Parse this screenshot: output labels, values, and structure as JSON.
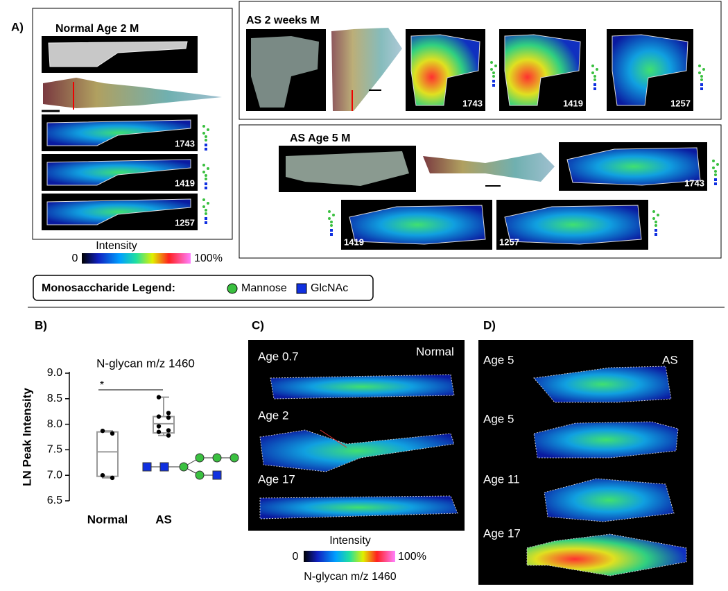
{
  "panel_a": {
    "label": "A)",
    "normal": {
      "title": "Normal Age 2 M",
      "mz": [
        "1743",
        "1419",
        "1257"
      ]
    },
    "as_2_weeks": {
      "title": "AS 2 weeks M",
      "mz": [
        "1743",
        "1419",
        "1257"
      ]
    },
    "as_5_months": {
      "title": "AS Age 5 M",
      "mz": [
        "1743",
        "1419",
        "1257"
      ]
    },
    "colorbar": {
      "title": "Intensity",
      "min": "0",
      "max": "100%"
    }
  },
  "legend": {
    "title": "Monosaccharide Legend:",
    "items": [
      "Mannose",
      "GlcNAc"
    ]
  },
  "panel_b": {
    "label": "B)"
  },
  "chart_data": {
    "type": "box",
    "title": "N-glycan m/z 1460",
    "y_label": "LN Peak Intensity",
    "categories": [
      "Normal",
      "AS"
    ],
    "color": "#999999",
    "boxes": [
      {
        "min": 6.95,
        "q1": 6.98,
        "median": 7.46,
        "q3": 7.85,
        "max": 7.87,
        "points": [
          7.87,
          7.82,
          7.0,
          6.95
        ]
      },
      {
        "min": 7.78,
        "q1": 7.83,
        "median": 8.01,
        "q3": 8.15,
        "max": 8.53,
        "points": [
          8.53,
          8.22,
          8.15,
          8.13,
          7.96,
          7.88,
          7.85,
          7.78
        ]
      }
    ],
    "significance": "*",
    "ylim": [
      6.5,
      9.0
    ],
    "yticks": [
      6.5,
      {
        "value": 7.0,
        "label": "7.0"
      },
      7.5,
      {
        "value": 8.0,
        "label": "8.0"
      },
      8.5,
      {
        "value": 9.0,
        "label": "9.0"
      }
    ]
  },
  "panel_c": {
    "label": "C)",
    "tag": "Normal",
    "ages": [
      "Age 0.7",
      "Age 2",
      "Age 17"
    ],
    "colorbar": {
      "title": "Intensity",
      "min": "0",
      "max": "100%",
      "caption": "N-glycan m/z 1460"
    }
  },
  "panel_d": {
    "label": "D)",
    "tag": "AS",
    "ages": [
      "Age 5",
      "Age 5",
      "Age 11",
      "Age 17"
    ]
  }
}
